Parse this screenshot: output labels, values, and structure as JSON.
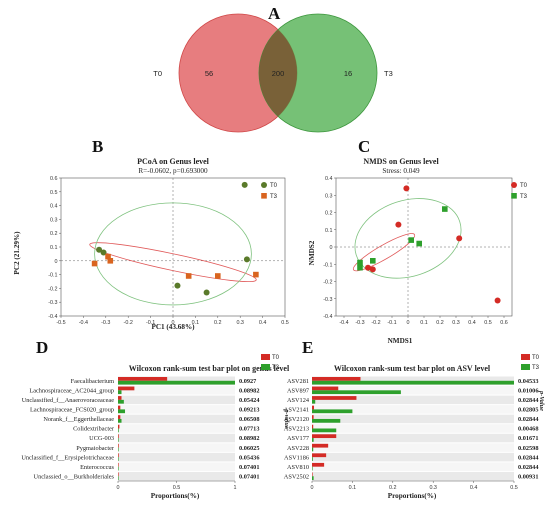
{
  "panels": {
    "A": "A",
    "B": "B",
    "C": "C",
    "D": "D",
    "E": "E"
  },
  "colors": {
    "t0": "#d42b25",
    "t3": "#2ea02c",
    "pcoa_t0": "#5a7a2a",
    "pcoa_t3": "#d9641f",
    "ellipse_t0": "#e05a5a",
    "ellipse_t3": "#7fc27f"
  },
  "chart_data": [
    {
      "type": "venn",
      "sets": [
        {
          "label": "T0",
          "only": 56,
          "color": "#e0595b"
        },
        {
          "label": "T3",
          "only": 16,
          "color": "#4fb04f"
        }
      ],
      "intersection": 200
    },
    {
      "type": "scatter",
      "title": "PCoA on Genus level",
      "subtitle": "R=-0.0602, p=0.693000",
      "xlabel": "PC1 (43.68%)",
      "ylabel": "PC2 (21.29%)",
      "xlim": [
        -0.5,
        0.5
      ],
      "ylim": [
        -0.4,
        0.6
      ],
      "xticks": [
        "-0.5",
        "-0.4",
        "-0.3",
        "-0.2",
        "-0.1",
        "0",
        "0.1",
        "0.2",
        "0.3",
        "0.4",
        "0.5"
      ],
      "yticks": [
        "-0.4",
        "-0.3",
        "-0.2",
        "-0.1",
        "0",
        "0.1",
        "0.2",
        "0.3",
        "0.4",
        "0.5",
        "0.6"
      ],
      "legend": "top-right",
      "series": [
        {
          "name": "T0",
          "marker": "circle",
          "points": [
            [
              -0.33,
              0.08
            ],
            [
              -0.31,
              0.06
            ],
            [
              0.32,
              0.55
            ],
            [
              0.02,
              -0.18
            ],
            [
              0.15,
              -0.23
            ],
            [
              0.33,
              0.01
            ]
          ]
        },
        {
          "name": "T3",
          "marker": "square",
          "points": [
            [
              -0.35,
              -0.02
            ],
            [
              -0.29,
              0.03
            ],
            [
              -0.28,
              0.0
            ],
            [
              0.07,
              -0.11
            ],
            [
              0.2,
              -0.11
            ],
            [
              0.37,
              -0.1
            ]
          ]
        }
      ]
    },
    {
      "type": "scatter",
      "title": "NMDS on Genus level",
      "subtitle": "Stress: 0.049",
      "xlabel": "NMDS1",
      "ylabel": "NMDS2",
      "xlim": [
        -0.45,
        0.65
      ],
      "ylim": [
        -0.4,
        0.4
      ],
      "xticks": [
        "-0.4",
        "-0.3",
        "-0.2",
        "-0.1",
        "0",
        "0.1",
        "0.2",
        "0.3",
        "0.4",
        "0.5",
        "0.6"
      ],
      "yticks": [
        "-0.4",
        "-0.3",
        "-0.2",
        "-0.1",
        "0",
        "0.1",
        "0.2",
        "0.3",
        "0.4"
      ],
      "legend": "top-right",
      "series": [
        {
          "name": "T0",
          "marker": "circle",
          "points": [
            [
              -0.01,
              0.34
            ],
            [
              -0.06,
              0.13
            ],
            [
              0.32,
              0.05
            ],
            [
              0.56,
              -0.31
            ],
            [
              -0.22,
              -0.13
            ],
            [
              -0.25,
              -0.12
            ]
          ]
        },
        {
          "name": "T3",
          "marker": "square",
          "points": [
            [
              0.23,
              0.22
            ],
            [
              -0.3,
              -0.09
            ],
            [
              -0.22,
              -0.08
            ],
            [
              0.02,
              0.04
            ],
            [
              0.07,
              0.02
            ],
            [
              -0.3,
              -0.12
            ]
          ]
        }
      ]
    },
    {
      "type": "bar",
      "orientation": "horizontal",
      "title": "Wilcoxon rank-sum test bar plot on genus level",
      "xlabel": "Proportions(%)",
      "right_label": "p-value",
      "xlim": [
        0,
        1.0
      ],
      "xticks": [
        "0",
        "0.5",
        "1"
      ],
      "legend": "top-right",
      "categories": [
        "Faecalibacterium",
        "Lachnospiraceae_AC2044_group",
        "Unclassified_f__Anaerovoraceaceae",
        "Lachnospiraceae_FCS020_group",
        "Norank_f__Eggerthellaceae",
        "Colidextribacter",
        "UCG-003",
        "Pygmaiobacter",
        "Unclassified_f__Erysipelotrichaceae",
        "Enterococcus",
        "Unclassied_o__Burkholderiales"
      ],
      "pvalues": [
        "0.0927",
        "0.08982",
        "0.05424",
        "0.09213",
        "0.06508",
        "0.07713",
        "0.08982",
        "0.06025",
        "0.05436",
        "0.07401",
        "0.07401"
      ],
      "series": [
        {
          "name": "T0",
          "values": [
            0.42,
            0.14,
            0.03,
            0.02,
            0.02,
            0.012,
            0.006,
            0.006,
            0.006,
            0.004,
            0.004
          ]
        },
        {
          "name": "T3",
          "values": [
            1.0,
            0.03,
            0.05,
            0.06,
            0.03,
            0.006,
            0.004,
            0.003,
            0.003,
            0.001,
            0.001
          ]
        }
      ]
    },
    {
      "type": "bar",
      "orientation": "horizontal",
      "title": "Wilcoxon rank-sum test bar plot on ASV level",
      "xlabel": "Proportions(%)",
      "right_label": "p-Value",
      "xlim": [
        0,
        0.5
      ],
      "xticks": [
        "0",
        "0.1",
        "0.2",
        "0.3",
        "0.4",
        "0.5"
      ],
      "legend": "top-right",
      "categories": [
        "ASV281",
        "ASV897",
        "ASV124",
        "ASV2141",
        "ASV2120",
        "ASV2213",
        "ASV177",
        "ASV228",
        "ASV1186",
        "ASV810",
        "ASV2502"
      ],
      "pvalues": [
        "0.04533",
        "0.01006",
        "0.02844",
        "0.02805",
        "0.02844",
        "0.00468",
        "0.01671",
        "0.02598",
        "0.02844",
        "0.02844",
        "0.00931"
      ],
      "series": [
        {
          "name": "T0",
          "values": [
            0.12,
            0.065,
            0.11,
            0.005,
            0.004,
            0.003,
            0.06,
            0.04,
            0.035,
            0.03,
            0.0
          ]
        },
        {
          "name": "T3",
          "values": [
            0.52,
            0.22,
            0.008,
            0.1,
            0.07,
            0.06,
            0.004,
            0.003,
            0.002,
            0.001,
            0.004
          ]
        }
      ]
    }
  ]
}
